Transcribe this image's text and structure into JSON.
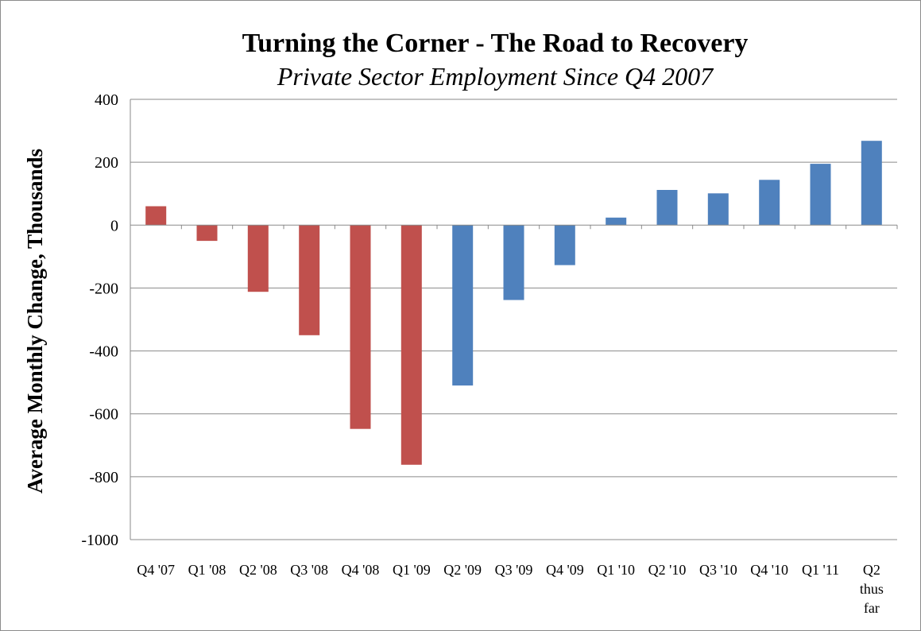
{
  "chart_data": {
    "type": "bar",
    "title": "Turning the Corner - The Road to Recovery",
    "subtitle": "Private Sector Employment Since Q4 2007",
    "ylabel": "Average Monthly Change, Thousands",
    "xlabel": "",
    "ylim": [
      -1000,
      400
    ],
    "yticks": [
      400,
      200,
      0,
      -200,
      -400,
      -600,
      -800,
      -1000
    ],
    "grid": true,
    "legend": "none",
    "categories": [
      "Q4 '07",
      "Q1 '08",
      "Q2 '08",
      "Q3 '08",
      "Q4 '08",
      "Q1 '09",
      "Q2 '09",
      "Q3 '09",
      "Q4 '09",
      "Q1 '10",
      "Q2 '10",
      "Q3 '10",
      "Q4 '10",
      "Q1 '11",
      "Q2 thus far"
    ],
    "values": [
      60,
      -50,
      -212,
      -350,
      -648,
      -762,
      -510,
      -238,
      -127,
      24,
      112,
      101,
      144,
      195,
      268
    ],
    "bar_colors": [
      "#c0504d",
      "#c0504d",
      "#c0504d",
      "#c0504d",
      "#c0504d",
      "#c0504d",
      "#4f81bd",
      "#4f81bd",
      "#4f81bd",
      "#4f81bd",
      "#4f81bd",
      "#4f81bd",
      "#4f81bd",
      "#4f81bd",
      "#4f81bd"
    ]
  }
}
